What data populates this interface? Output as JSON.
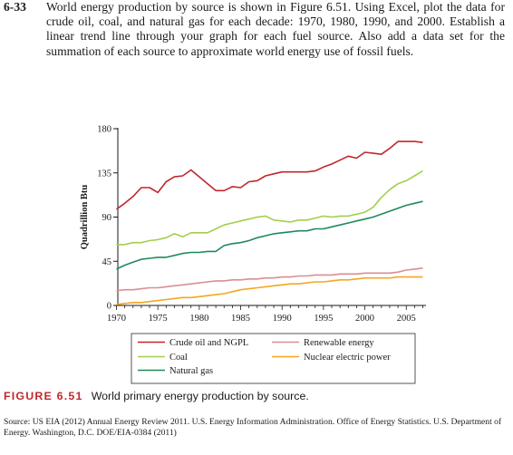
{
  "problem": {
    "number": "6-33",
    "text": "World energy production by source is shown in Figure 6.51. Using Excel, plot the data for crude oil, coal, and natural gas for each decade: 1970, 1980, 1990, and 2000. Establish a linear trend line through your graph for each fuel source. Also add a data set for the summation of each source to approximate world energy use of fossil fuels."
  },
  "figure": {
    "label": "FIGURE 6.51",
    "caption": "World primary energy production by source.",
    "source": "Source: US EIA (2012) Annual Energy Review 2011. U.S. Energy Information Administration. Office of Energy Statistics. U.S. Department of Energy. Washington, D.C. DOE/EIA-0384 (2011)"
  },
  "chart_data": {
    "type": "line",
    "title": "",
    "xlabel": "",
    "ylabel": "Quadrillion Btu",
    "xlim": [
      1970,
      2007
    ],
    "ylim": [
      0,
      180
    ],
    "x_ticks": [
      1970,
      1975,
      1980,
      1985,
      1990,
      1995,
      2000,
      2005
    ],
    "y_ticks": [
      0,
      45,
      90,
      135,
      180
    ],
    "grid": false,
    "legend_position": "bottom",
    "x": [
      1970,
      1971,
      1972,
      1973,
      1974,
      1975,
      1976,
      1977,
      1978,
      1979,
      1980,
      1981,
      1982,
      1983,
      1984,
      1985,
      1986,
      1987,
      1988,
      1989,
      1990,
      1991,
      1992,
      1993,
      1994,
      1995,
      1996,
      1997,
      1998,
      1999,
      2000,
      2001,
      2002,
      2003,
      2004,
      2005,
      2006,
      2007
    ],
    "series": [
      {
        "name": "Crude oil and NGPL",
        "color": "#c0272d",
        "values": [
          98,
          104,
          111,
          120,
          120,
          115,
          126,
          131,
          132,
          138,
          131,
          124,
          117,
          117,
          121,
          120,
          126,
          127,
          132,
          134,
          136,
          136,
          136,
          136,
          137,
          141,
          144,
          148,
          152,
          150,
          156,
          155,
          154,
          160,
          167,
          167,
          167,
          166
        ]
      },
      {
        "name": "Coal",
        "color": "#a3cf4e",
        "values": [
          62,
          62,
          64,
          64,
          66,
          67,
          69,
          73,
          70,
          74,
          74,
          74,
          78,
          82,
          84,
          86,
          88,
          90,
          91,
          87,
          86,
          85,
          87,
          87,
          89,
          91,
          90,
          91,
          91,
          93,
          95,
          100,
          110,
          118,
          124,
          127,
          132,
          137
        ]
      },
      {
        "name": "Natural gas",
        "color": "#1f8a5b",
        "values": [
          37,
          41,
          44,
          47,
          48,
          49,
          49,
          51,
          53,
          54,
          54,
          55,
          55,
          61,
          63,
          64,
          66,
          69,
          71,
          73,
          74,
          75,
          76,
          76,
          78,
          78,
          80,
          82,
          84,
          86,
          88,
          90,
          93,
          96,
          99,
          102,
          104,
          106
        ]
      },
      {
        "name": "Renewable energy",
        "color": "#d98f92",
        "values": [
          15,
          16,
          16,
          17,
          18,
          18,
          19,
          20,
          21,
          22,
          23,
          24,
          25,
          25,
          26,
          26,
          27,
          27,
          28,
          28,
          29,
          29,
          30,
          30,
          31,
          31,
          31,
          32,
          32,
          32,
          33,
          33,
          33,
          33,
          34,
          36,
          37,
          38
        ]
      },
      {
        "name": "Nuclear electric power",
        "color": "#f5a623",
        "values": [
          1,
          2,
          3,
          3,
          4,
          5,
          6,
          7,
          8,
          8,
          9,
          10,
          11,
          12,
          14,
          16,
          17,
          18,
          19,
          20,
          21,
          22,
          22,
          23,
          24,
          24,
          25,
          26,
          26,
          27,
          28,
          28,
          28,
          28,
          29,
          29,
          29,
          29
        ]
      }
    ]
  }
}
